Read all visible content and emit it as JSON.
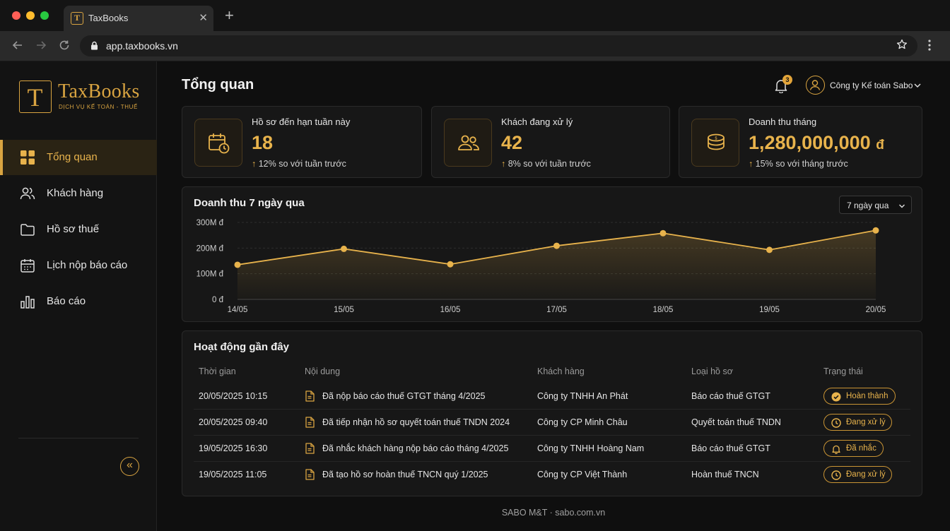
{
  "browser": {
    "tab_title": "TaxBooks",
    "tab_close": "✕",
    "new_tab": "+",
    "url": "app.taxbooks.vn"
  },
  "sidebar": {
    "logo_letter": "T",
    "logo_name": "TaxBooks",
    "logo_tagline": "DỊCH VỤ KẾ TOÁN - THUẾ",
    "items": [
      {
        "label": "Tổng quan",
        "icon": "grid-icon",
        "active": true
      },
      {
        "label": "Khách hàng",
        "icon": "users-icon",
        "active": false
      },
      {
        "label": "Hồ sơ thuế",
        "icon": "folder-icon",
        "active": false
      },
      {
        "label": "Lịch nộp báo cáo",
        "icon": "calendar-icon",
        "active": false
      },
      {
        "label": "Báo cáo",
        "icon": "bar-chart-icon",
        "active": false
      }
    ],
    "collapse_label": "«"
  },
  "header": {
    "title": "Tổng quan",
    "notification_count": "3",
    "user_name": "Công ty Kế toán Sabo"
  },
  "stats": [
    {
      "label": "Hồ sơ đến hạn tuần này",
      "value": "18",
      "delta": "12% so với tuần trước",
      "icon": "calendar-clock-icon"
    },
    {
      "label": "Khách đang xử lý",
      "value": "42",
      "delta": "8% so với tuần trước",
      "icon": "users-icon"
    },
    {
      "label": "Doanh thu tháng",
      "value": "1,280,000,000",
      "currency": "đ",
      "delta": "15% so với tháng trước",
      "icon": "coins-icon"
    }
  ],
  "revenue_chart": {
    "title": "Doanh thu 7 ngày qua",
    "range_label": "7 ngày qua"
  },
  "chart_data": {
    "type": "area",
    "categories": [
      "14/05",
      "15/05",
      "16/05",
      "17/05",
      "18/05",
      "19/05",
      "20/05"
    ],
    "values": [
      135,
      197,
      137,
      209,
      258,
      193,
      269
    ],
    "y_tick_labels": [
      "0 đ",
      "100M đ",
      "200M đ",
      "300M đ"
    ],
    "y_ticks": [
      0,
      100,
      200,
      300
    ],
    "ylim": [
      0,
      300
    ],
    "grid": true,
    "color": "#e8b34c"
  },
  "activity": {
    "title": "Hoạt động gần đây",
    "columns": [
      "Thời gian",
      "Nội dung",
      "Khách hàng",
      "Loại hồ sơ",
      "Trạng thái"
    ],
    "rows": [
      {
        "time": "20/05/2025 10:15",
        "content": "Đã nộp báo cáo thuế GTGT tháng 4/2025",
        "client": "Công ty TNHH An Phát",
        "type": "Báo cáo thuế GTGT",
        "status": "Hoàn thành",
        "status_icon": "check-circle-icon"
      },
      {
        "time": "20/05/2025 09:40",
        "content": "Đã tiếp nhận hồ sơ quyết toán thuế TNDN 2024",
        "client": "Công ty CP Minh Châu",
        "type": "Quyết toán thuế TNDN",
        "status": "Đang xử lý",
        "status_icon": "clock-icon"
      },
      {
        "time": "19/05/2025 16:30",
        "content": "Đã nhắc khách hàng nộp báo cáo tháng 4/2025",
        "client": "Công ty TNHH Hoàng Nam",
        "type": "Báo cáo thuế GTGT",
        "status": "Đã nhắc",
        "status_icon": "bell-icon"
      },
      {
        "time": "19/05/2025 11:05",
        "content": "Đã tạo hồ sơ hoàn thuế TNCN quý 1/2025",
        "client": "Công ty CP Việt Thành",
        "type": "Hoàn thuế TNCN",
        "status": "Đang xử lý",
        "status_icon": "clock-icon"
      }
    ]
  },
  "footer": {
    "text": "SABO M&T · sabo.com.vn"
  }
}
